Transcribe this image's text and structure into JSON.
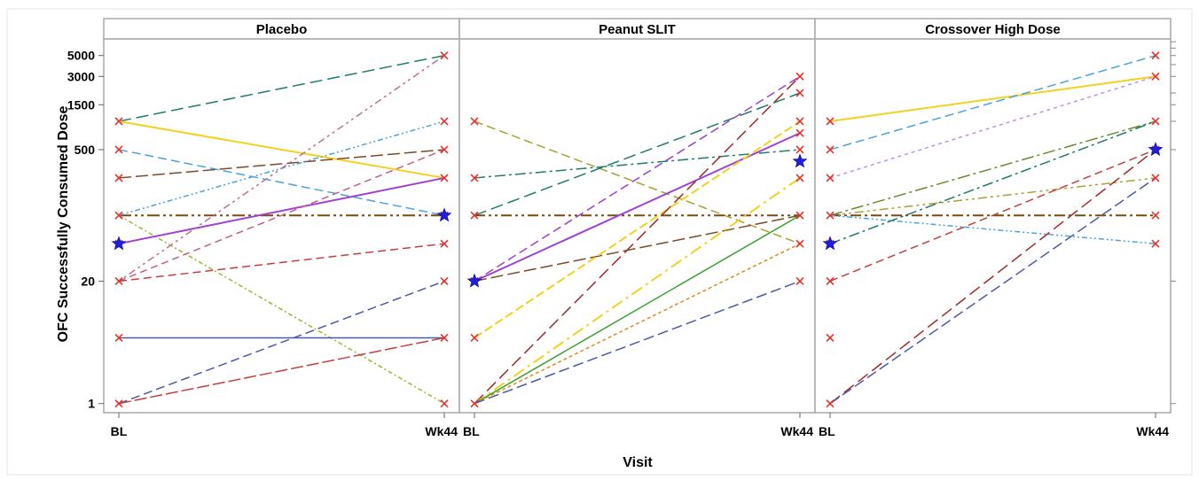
{
  "chart_data": {
    "type": "line",
    "ylabel": "OFC Successfully Consumed Dose",
    "xlabel": "Visit",
    "yscale": "log",
    "ylim": [
      0.8,
      7500
    ],
    "yticks": [
      {
        "value": 1,
        "label": "1"
      },
      {
        "value": 20,
        "label": "20"
      },
      {
        "value": 500,
        "label": "500"
      },
      {
        "value": 1500,
        "label": "1500"
      },
      {
        "value": 3000,
        "label": "3000"
      },
      {
        "value": 5000,
        "label": "5000"
      }
    ],
    "categories": [
      "BL",
      "Wk44"
    ],
    "marker_color": "#e8302a",
    "highlight_color": "#1f1fe0",
    "panels": [
      {
        "title": "Placebo",
        "series": [
          {
            "values": [
              1000,
              5000
            ],
            "color": "#1f7a6e",
            "dash": "14,6"
          },
          {
            "values": [
              1000,
              250
            ],
            "color": "#f2d21f",
            "dash": "",
            "width": 2
          },
          {
            "values": [
              500,
              100
            ],
            "color": "#4aa3df",
            "dash": "10,5"
          },
          {
            "values": [
              250,
              500
            ],
            "color": "#7a4a2a",
            "dash": "14,5"
          },
          {
            "values": [
              100,
              100
            ],
            "color": "#7a4a10",
            "dash": "14,4,3,4,3,4",
            "width": 2
          },
          {
            "values": [
              100,
              1000
            ],
            "color": "#4aa3df",
            "dash": "6,3,2,3,2,3"
          },
          {
            "values": [
              100,
              1
            ],
            "color": "#a8b030",
            "dash": "5,3,2,3"
          },
          {
            "values": [
              50,
              250
            ],
            "color": "#a040d0",
            "dash": "",
            "width": 2
          },
          {
            "values": [
              20,
              5000
            ],
            "color": "#c07090",
            "dash": "3,4,3,4,8,4"
          },
          {
            "values": [
              20,
              500
            ],
            "color": "#c06080",
            "dash": "8,5"
          },
          {
            "values": [
              20,
              50
            ],
            "color": "#c04040",
            "dash": "9,5"
          },
          {
            "values": [
              5,
              5
            ],
            "color": "#4a5aa8",
            "dash": "",
            "width": 1.5
          },
          {
            "values": [
              1,
              20
            ],
            "color": "#4a5aa8",
            "dash": "10,5"
          },
          {
            "values": [
              1,
              5
            ],
            "color": "#c04040",
            "dash": "14,4"
          }
        ],
        "highlights": [
          {
            "visit": "BL",
            "value": 50
          },
          {
            "visit": "Wk44",
            "value": 100
          }
        ]
      },
      {
        "title": "Peanut SLIT",
        "series": [
          {
            "values": [
              1000,
              50
            ],
            "color": "#a8a030",
            "dash": "10,5"
          },
          {
            "values": [
              250,
              500
            ],
            "color": "#1f7a6e",
            "dash": "12,4,3,4"
          },
          {
            "values": [
              100,
              2000
            ],
            "color": "#1f7a6e",
            "dash": "14,6"
          },
          {
            "values": [
              100,
              100
            ],
            "color": "#7a4a10",
            "dash": "12,4,3,4,3,4",
            "width": 2
          },
          {
            "values": [
              20,
              3000
            ],
            "color": "#9a40d0",
            "dash": "10,5"
          },
          {
            "values": [
              20,
              100
            ],
            "color": "#7a4a2a",
            "dash": "14,5"
          },
          {
            "values": [
              20,
              750
            ],
            "color": "#a040d0",
            "dash": "",
            "width": 2
          },
          {
            "values": [
              5,
              1000
            ],
            "color": "#f2d21f",
            "dash": "10,4",
            "width": 2
          },
          {
            "values": [
              1,
              3000
            ],
            "color": "#a02a2a",
            "dash": "14,6"
          },
          {
            "values": [
              1,
              250
            ],
            "color": "#f2d21f",
            "dash": "14,5,3,5",
            "width": 2
          },
          {
            "values": [
              1,
              100
            ],
            "color": "#3aa030",
            "dash": "",
            "width": 1.5
          },
          {
            "values": [
              1,
              50
            ],
            "color": "#e08a20",
            "dash": "4,3"
          },
          {
            "values": [
              1,
              20
            ],
            "color": "#4a5aa8",
            "dash": "12,5"
          }
        ],
        "highlights": [
          {
            "visit": "BL",
            "value": 20
          },
          {
            "visit": "Wk44",
            "value": 375
          }
        ]
      },
      {
        "title": "Crossover High Dose",
        "series": [
          {
            "values": [
              1000,
              3000
            ],
            "color": "#f2d21f",
            "dash": "",
            "width": 2
          },
          {
            "values": [
              500,
              5000
            ],
            "color": "#4aa3df",
            "dash": "10,5"
          },
          {
            "values": [
              250,
              3000
            ],
            "color": "#c090e8",
            "dash": "4,4"
          },
          {
            "values": [
              100,
              1000
            ],
            "color": "#6a8a30",
            "dash": "14,4,3,4"
          },
          {
            "values": [
              100,
              250
            ],
            "color": "#a8a030",
            "dash": "10,4,3,4,3,4"
          },
          {
            "values": [
              100,
              100
            ],
            "color": "#7a4a10",
            "dash": "12,4,3,4",
            "width": 2
          },
          {
            "values": [
              100,
              50
            ],
            "color": "#4aa3df",
            "dash": "6,3,2,3,2,3"
          },
          {
            "values": [
              50,
              1000
            ],
            "color": "#1f7a6e",
            "dash": "12,4,3,4"
          },
          {
            "values": [
              20,
              500
            ],
            "color": "#c04040",
            "dash": "9,5"
          },
          {
            "values": [
              1,
              500
            ],
            "color": "#a02a2a",
            "dash": "14,6"
          },
          {
            "values": [
              1,
              250
            ],
            "color": "#4a5aa8",
            "dash": "12,5"
          }
        ],
        "extra_markers": [
          {
            "visit": "BL",
            "value": 5
          }
        ],
        "highlights": [
          {
            "visit": "BL",
            "value": 50
          },
          {
            "visit": "Wk44",
            "value": 500
          }
        ]
      }
    ]
  }
}
